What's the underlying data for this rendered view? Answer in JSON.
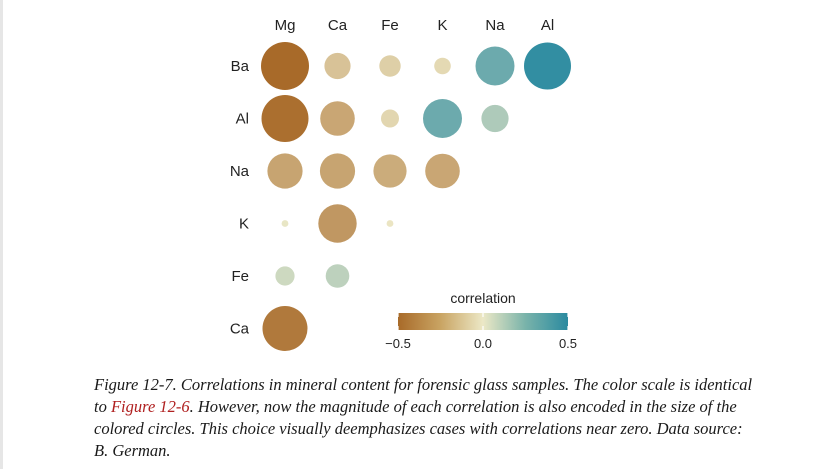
{
  "chart_data": {
    "type": "heatmap",
    "columns": [
      "Mg",
      "Ca",
      "Fe",
      "K",
      "Na",
      "Al"
    ],
    "rows": [
      "Ba",
      "Al",
      "Na",
      "K",
      "Fe",
      "Ca"
    ],
    "cells": [
      {
        "row": "Ba",
        "col": "Mg",
        "value": -0.5
      },
      {
        "row": "Ba",
        "col": "Ca",
        "value": -0.15
      },
      {
        "row": "Ba",
        "col": "Fe",
        "value": -0.1
      },
      {
        "row": "Ba",
        "col": "K",
        "value": -0.06
      },
      {
        "row": "Ba",
        "col": "Na",
        "value": 0.33
      },
      {
        "row": "Ba",
        "col": "Al",
        "value": 0.48
      },
      {
        "row": "Al",
        "col": "Mg",
        "value": -0.48
      },
      {
        "row": "Al",
        "col": "Ca",
        "value": -0.26
      },
      {
        "row": "Al",
        "col": "Fe",
        "value": -0.07
      },
      {
        "row": "Al",
        "col": "K",
        "value": 0.33
      },
      {
        "row": "Al",
        "col": "Na",
        "value": 0.16
      },
      {
        "row": "Na",
        "col": "Mg",
        "value": -0.27
      },
      {
        "row": "Na",
        "col": "Ca",
        "value": -0.27
      },
      {
        "row": "Na",
        "col": "Fe",
        "value": -0.24
      },
      {
        "row": "Na",
        "col": "K",
        "value": -0.26
      },
      {
        "row": "K",
        "col": "Mg",
        "value": 0.01
      },
      {
        "row": "K",
        "col": "Ca",
        "value": -0.32
      },
      {
        "row": "K",
        "col": "Fe",
        "value": -0.01
      },
      {
        "row": "Fe",
        "col": "Mg",
        "value": 0.08
      },
      {
        "row": "Fe",
        "col": "Ca",
        "value": 0.12
      },
      {
        "row": "Ca",
        "col": "Mg",
        "value": -0.44
      }
    ],
    "legend": {
      "title": "correlation",
      "ticks": [
        "−0.5",
        "0.0",
        "0.5"
      ],
      "range": [
        -0.5,
        0.5
      ],
      "colors": {
        "negative": "#a86a29",
        "mid": "#ece8c6",
        "positive": "#2a8aa0"
      }
    }
  },
  "caption": {
    "prefix": "Figure 12-7. Correlations in mineral content for forensic glass samples. The color scale is identical to ",
    "ref": "Figure 12-6",
    "suffix": ". However, now the magnitude of each correlation is also encoded in the size of the colored circles. This choice visually deemphasizes cases with correlations near zero. Data source: B. German."
  }
}
